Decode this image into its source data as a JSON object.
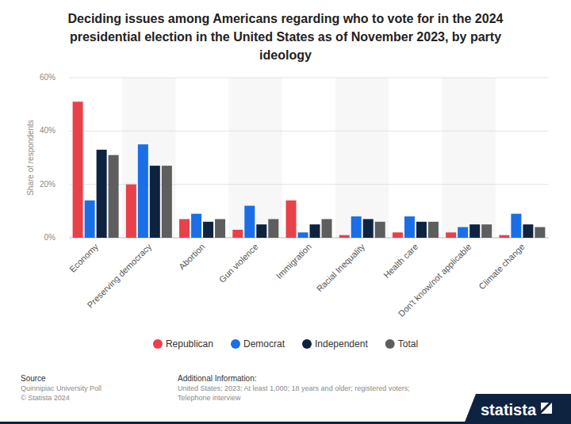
{
  "chart_data": {
    "type": "bar",
    "title": "Deciding issues among Americans regarding who to vote for in the 2024 presidential election in the United States as of November 2023, by party ideology",
    "y_label": "Share of respondents",
    "categories": [
      "Economy",
      "Preserving democracy",
      "Abortion",
      "Gun violence",
      "Immigration",
      "Racial Inequality",
      "Health care",
      "Don't know/not applicable",
      "Climate change"
    ],
    "series": [
      {
        "name": "Republican",
        "color": "#e8414a",
        "values": [
          51,
          20,
          7,
          3,
          14,
          1,
          2,
          2,
          1
        ]
      },
      {
        "name": "Democrat",
        "color": "#1a6fe6",
        "values": [
          14,
          35,
          9,
          12,
          2,
          8,
          8,
          4,
          9
        ]
      },
      {
        "name": "Independent",
        "color": "#0e2340",
        "values": [
          33,
          27,
          6,
          5,
          5,
          7,
          6,
          5,
          5
        ]
      },
      {
        "name": "Total",
        "color": "#5e5e5e",
        "values": [
          31,
          27,
          7,
          7,
          7,
          6,
          6,
          5,
          4
        ]
      }
    ],
    "ylim": [
      0,
      60
    ],
    "yticks": [
      {
        "value": 0,
        "label": "0%"
      },
      {
        "value": 20,
        "label": "20%"
      },
      {
        "value": 40,
        "label": "40%"
      },
      {
        "value": 60,
        "label": "60%"
      }
    ],
    "grid": true,
    "legend": "bottom",
    "data_labels": false
  },
  "footer": {
    "source_heading": "Source",
    "source": "Quinnipiac University Poll",
    "copyright": "© Statista 2024",
    "info_heading": "Additional Information:",
    "info_lines": [
      "United States; 2023; At least 1,000; 18 years and older; registered voters;",
      "Telephone interview"
    ],
    "logo": "statista"
  }
}
